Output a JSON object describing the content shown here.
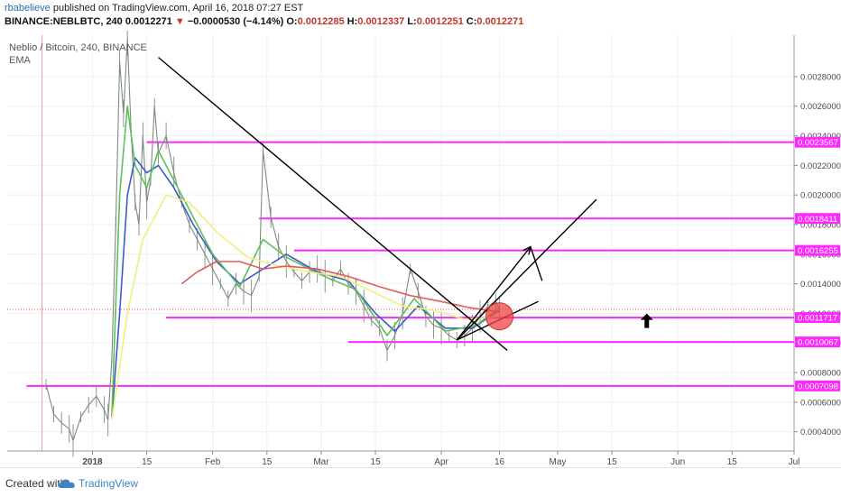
{
  "header": {
    "author": "rbabelieve",
    "published_text": "published on TradingView.com, April 16, 2018 07:27 EST",
    "symbol": "BINANCE:NEBLBTC, 240",
    "price": "0.0012271",
    "arrow": "▼",
    "change": "−0.0000530 (−4.14%)",
    "ohlc": [
      {
        "label": "O:",
        "value": "0.0012285"
      },
      {
        "label": "H:",
        "value": "0.0012337"
      },
      {
        "label": "L:",
        "value": "0.0012251"
      },
      {
        "label": "C:",
        "value": "0.0012271"
      }
    ]
  },
  "legend": {
    "title": "Neblio / Bitcoin, 240, BINANCE",
    "indicator": "EMA"
  },
  "footer": {
    "created_with": "Created with",
    "brand": "TradingView"
  },
  "colors": {
    "background": "#ffffff",
    "grid": "#eef0f3",
    "candle": "#7f8b7f",
    "ema_blue": "#3c5ac8",
    "ema_green": "#5cc05c",
    "ema_yellow": "#f2ee7e",
    "ema_red": "#e35c5c",
    "level_line": "#ff27ff",
    "level_label_bg": "#ff27ff",
    "trend_line": "#000000",
    "highlight": "#ee4444"
  },
  "chart_data": {
    "type": "line",
    "title": "Neblio / Bitcoin, 240, BINANCE",
    "x_ticks": [
      "2018",
      "15",
      "Feb",
      "15",
      "Mar",
      "15",
      "Apr",
      "16",
      "May",
      "15",
      "Jun",
      "15",
      "Jul"
    ],
    "y_ticks": [
      "0.0028000",
      "0.0026000",
      "0.0024000",
      "0.0022000",
      "0.0020000",
      "0.0018000",
      "0.0016000",
      "0.0014000",
      "0.0012000",
      "0.0010000",
      "0.0008000",
      "0.0006000",
      "0.0004000"
    ],
    "ylim": [
      0.00027,
      0.00308
    ],
    "date_range": [
      "2017-12-10",
      "2018-07-01"
    ],
    "price_series": [
      {
        "x": "2017-12-20",
        "y": 0.00072
      },
      {
        "x": "2017-12-22",
        "y": 0.00052
      },
      {
        "x": "2017-12-24",
        "y": 0.00046
      },
      {
        "x": "2017-12-26",
        "y": 0.00042
      },
      {
        "x": "2017-12-27",
        "y": 0.00034
      },
      {
        "x": "2017-12-29",
        "y": 0.0005
      },
      {
        "x": "2017-12-31",
        "y": 0.00058
      },
      {
        "x": "2018-01-02",
        "y": 0.00064
      },
      {
        "x": "2018-01-04",
        "y": 0.00055
      },
      {
        "x": "2018-01-05",
        "y": 0.00048
      },
      {
        "x": "2018-01-06",
        "y": 0.0009
      },
      {
        "x": "2018-01-07",
        "y": 0.0018
      },
      {
        "x": "2018-01-08",
        "y": 0.0029
      },
      {
        "x": "2018-01-09",
        "y": 0.00255
      },
      {
        "x": "2018-01-10",
        "y": 0.00305
      },
      {
        "x": "2018-01-11",
        "y": 0.0024
      },
      {
        "x": "2018-01-12",
        "y": 0.00195
      },
      {
        "x": "2018-01-13",
        "y": 0.0018
      },
      {
        "x": "2018-01-14",
        "y": 0.0024
      },
      {
        "x": "2018-01-15",
        "y": 0.00195
      },
      {
        "x": "2018-01-16",
        "y": 0.0021
      },
      {
        "x": "2018-01-17",
        "y": 0.0026
      },
      {
        "x": "2018-01-18",
        "y": 0.00228
      },
      {
        "x": "2018-01-20",
        "y": 0.0024
      },
      {
        "x": "2018-01-22",
        "y": 0.00215
      },
      {
        "x": "2018-01-24",
        "y": 0.00195
      },
      {
        "x": "2018-01-26",
        "y": 0.0018
      },
      {
        "x": "2018-01-28",
        "y": 0.0017
      },
      {
        "x": "2018-01-30",
        "y": 0.0016
      },
      {
        "x": "2018-02-01",
        "y": 0.0015
      },
      {
        "x": "2018-02-03",
        "y": 0.0014
      },
      {
        "x": "2018-02-05",
        "y": 0.0013
      },
      {
        "x": "2018-02-07",
        "y": 0.0014
      },
      {
        "x": "2018-02-09",
        "y": 0.00135
      },
      {
        "x": "2018-02-11",
        "y": 0.00132
      },
      {
        "x": "2018-02-13",
        "y": 0.00145
      },
      {
        "x": "2018-02-14",
        "y": 0.0023
      },
      {
        "x": "2018-02-16",
        "y": 0.00185
      },
      {
        "x": "2018-02-18",
        "y": 0.00165
      },
      {
        "x": "2018-02-20",
        "y": 0.00155
      },
      {
        "x": "2018-02-22",
        "y": 0.00148
      },
      {
        "x": "2018-02-24",
        "y": 0.00142
      },
      {
        "x": "2018-02-26",
        "y": 0.00148
      },
      {
        "x": "2018-02-28",
        "y": 0.0015
      },
      {
        "x": "2018-03-02",
        "y": 0.00145
      },
      {
        "x": "2018-03-04",
        "y": 0.00142
      },
      {
        "x": "2018-03-06",
        "y": 0.0015
      },
      {
        "x": "2018-03-08",
        "y": 0.0014
      },
      {
        "x": "2018-03-10",
        "y": 0.00135
      },
      {
        "x": "2018-03-12",
        "y": 0.00125
      },
      {
        "x": "2018-03-14",
        "y": 0.00115
      },
      {
        "x": "2018-03-16",
        "y": 0.0011
      },
      {
        "x": "2018-03-18",
        "y": 0.00095
      },
      {
        "x": "2018-03-20",
        "y": 0.00105
      },
      {
        "x": "2018-03-22",
        "y": 0.0012
      },
      {
        "x": "2018-03-24",
        "y": 0.0015
      },
      {
        "x": "2018-03-26",
        "y": 0.00135
      },
      {
        "x": "2018-03-28",
        "y": 0.00118
      },
      {
        "x": "2018-03-30",
        "y": 0.00112
      },
      {
        "x": "2018-04-01",
        "y": 0.0011
      },
      {
        "x": "2018-04-03",
        "y": 0.00105
      },
      {
        "x": "2018-04-05",
        "y": 0.00102
      },
      {
        "x": "2018-04-07",
        "y": 0.00105
      },
      {
        "x": "2018-04-09",
        "y": 0.0011
      },
      {
        "x": "2018-04-11",
        "y": 0.00118
      },
      {
        "x": "2018-04-13",
        "y": 0.00125
      },
      {
        "x": "2018-04-15",
        "y": 0.00128
      },
      {
        "x": "2018-04-16",
        "y": 0.00123
      }
    ],
    "series": [
      {
        "name": "",
        "color": "#3c5ac8",
        "points": [
          {
            "x": "2018-01-06",
            "y": 0.0005
          },
          {
            "x": "2018-01-08",
            "y": 0.0012
          },
          {
            "x": "2018-01-10",
            "y": 0.002
          },
          {
            "x": "2018-01-12",
            "y": 0.00225
          },
          {
            "x": "2018-01-15",
            "y": 0.00215
          },
          {
            "x": "2018-01-18",
            "y": 0.0022
          },
          {
            "x": "2018-01-22",
            "y": 0.00205
          },
          {
            "x": "2018-01-27",
            "y": 0.0018
          },
          {
            "x": "2018-02-02",
            "y": 0.00155
          },
          {
            "x": "2018-02-08",
            "y": 0.0014
          },
          {
            "x": "2018-02-14",
            "y": 0.0015
          },
          {
            "x": "2018-02-20",
            "y": 0.0016
          },
          {
            "x": "2018-02-28",
            "y": 0.00148
          },
          {
            "x": "2018-03-08",
            "y": 0.00142
          },
          {
            "x": "2018-03-15",
            "y": 0.0012
          },
          {
            "x": "2018-03-20",
            "y": 0.00108
          },
          {
            "x": "2018-03-26",
            "y": 0.00125
          },
          {
            "x": "2018-04-02",
            "y": 0.0011
          },
          {
            "x": "2018-04-09",
            "y": 0.0011
          },
          {
            "x": "2018-04-16",
            "y": 0.00122
          }
        ]
      },
      {
        "name": "",
        "color": "#5cc05c",
        "points": [
          {
            "x": "2018-01-06",
            "y": 0.00052
          },
          {
            "x": "2018-01-08",
            "y": 0.002
          },
          {
            "x": "2018-01-10",
            "y": 0.0026
          },
          {
            "x": "2018-01-12",
            "y": 0.0022
          },
          {
            "x": "2018-01-15",
            "y": 0.00205
          },
          {
            "x": "2018-01-18",
            "y": 0.0023
          },
          {
            "x": "2018-01-24",
            "y": 0.002
          },
          {
            "x": "2018-02-01",
            "y": 0.0016
          },
          {
            "x": "2018-02-08",
            "y": 0.00138
          },
          {
            "x": "2018-02-14",
            "y": 0.0017
          },
          {
            "x": "2018-02-20",
            "y": 0.00158
          },
          {
            "x": "2018-03-01",
            "y": 0.00146
          },
          {
            "x": "2018-03-10",
            "y": 0.00136
          },
          {
            "x": "2018-03-18",
            "y": 0.00105
          },
          {
            "x": "2018-03-25",
            "y": 0.0013
          },
          {
            "x": "2018-04-02",
            "y": 0.00108
          },
          {
            "x": "2018-04-10",
            "y": 0.00112
          },
          {
            "x": "2018-04-16",
            "y": 0.00124
          }
        ]
      },
      {
        "name": "",
        "color": "#f2ee7e",
        "points": [
          {
            "x": "2018-01-06",
            "y": 0.00048
          },
          {
            "x": "2018-01-10",
            "y": 0.0012
          },
          {
            "x": "2018-01-14",
            "y": 0.0017
          },
          {
            "x": "2018-01-20",
            "y": 0.002
          },
          {
            "x": "2018-01-26",
            "y": 0.00195
          },
          {
            "x": "2018-02-02",
            "y": 0.00175
          },
          {
            "x": "2018-02-10",
            "y": 0.00158
          },
          {
            "x": "2018-02-18",
            "y": 0.00152
          },
          {
            "x": "2018-02-26",
            "y": 0.00148
          },
          {
            "x": "2018-03-06",
            "y": 0.00145
          },
          {
            "x": "2018-03-14",
            "y": 0.00135
          },
          {
            "x": "2018-03-22",
            "y": 0.00125
          },
          {
            "x": "2018-03-30",
            "y": 0.00122
          },
          {
            "x": "2018-04-07",
            "y": 0.00116
          },
          {
            "x": "2018-04-16",
            "y": 0.00118
          }
        ]
      },
      {
        "name": "",
        "color": "#e35c5c",
        "points": [
          {
            "x": "2018-01-24",
            "y": 0.0014
          },
          {
            "x": "2018-01-28",
            "y": 0.00148
          },
          {
            "x": "2018-02-02",
            "y": 0.00155
          },
          {
            "x": "2018-02-08",
            "y": 0.00155
          },
          {
            "x": "2018-02-14",
            "y": 0.0015
          },
          {
            "x": "2018-02-20",
            "y": 0.00152
          },
          {
            "x": "2018-02-28",
            "y": 0.0015
          },
          {
            "x": "2018-03-08",
            "y": 0.00145
          },
          {
            "x": "2018-03-16",
            "y": 0.00138
          },
          {
            "x": "2018-03-24",
            "y": 0.00132
          },
          {
            "x": "2018-04-01",
            "y": 0.00128
          },
          {
            "x": "2018-04-08",
            "y": 0.00124
          },
          {
            "x": "2018-04-16",
            "y": 0.00121
          }
        ]
      }
    ],
    "levels": [
      {
        "value": 0.0023567,
        "label": "0.0023567",
        "from": "2018-01-15"
      },
      {
        "value": 0.0018411,
        "label": "0.0018411",
        "from": "2018-02-13"
      },
      {
        "value": 0.0016255,
        "label": "0.0016255",
        "from": "2018-02-22"
      },
      {
        "value": 0.0011717,
        "label": "0.0011717",
        "from": "2018-01-20"
      },
      {
        "value": 0.0010067,
        "label": "0.0010067",
        "from": "2018-03-08"
      },
      {
        "value": 0.0007098,
        "label": "0.0007098",
        "from": "2017-12-15"
      }
    ],
    "current_price": 0.0012271,
    "trend_lines": [
      {
        "from": {
          "x": "2018-01-18",
          "y": 0.00293
        },
        "to": {
          "x": "2018-04-18",
          "y": 0.00095
        }
      },
      {
        "from": {
          "x": "2018-04-05",
          "y": 0.00102
        },
        "to": {
          "x": "2018-04-26",
          "y": 0.00128
        }
      },
      {
        "from": {
          "x": "2018-04-05",
          "y": 0.00102
        },
        "to": {
          "x": "2018-05-11",
          "y": 0.00197
        },
        "arrow": "none"
      },
      {
        "from": {
          "x": "2018-04-05",
          "y": 0.00102
        },
        "to": {
          "x": "2018-04-24",
          "y": 0.00165
        },
        "arrow": "head"
      },
      {
        "from": {
          "x": "2018-04-24",
          "y": 0.00165
        },
        "to": {
          "x": "2018-04-27",
          "y": 0.00142
        },
        "arrow": "none"
      }
    ],
    "highlight_circle": {
      "x": "2018-04-16",
      "y": 0.00118
    },
    "up_arrow": {
      "x": "2018-05-24",
      "y": 0.00115
    }
  }
}
